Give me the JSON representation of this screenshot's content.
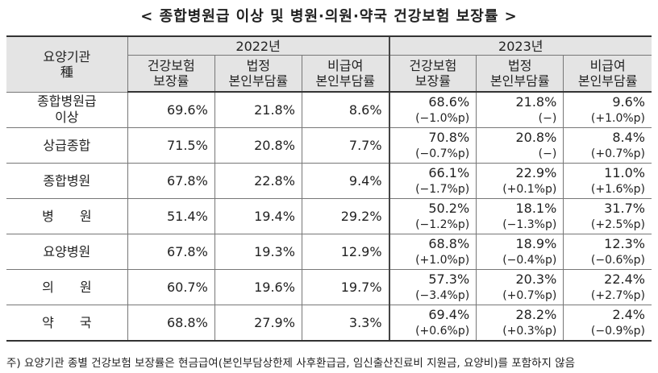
{
  "title": "< 종합병원급 이상 및 병원·의원·약국 건강보험 보장률 >",
  "header": {
    "row_label_line1": "요양기관",
    "row_label_line2": "種",
    "year_2022": "2022년",
    "year_2023": "2023년",
    "columns": [
      {
        "line1": "건강보험",
        "line2": "보장률"
      },
      {
        "line1": "법정",
        "line2": "본인부담률"
      },
      {
        "line1": "비급여",
        "line2": "본인부담률"
      },
      {
        "line1": "건강보험",
        "line2": "보장률"
      },
      {
        "line1": "법정",
        "line2": "본인부담률"
      },
      {
        "line1": "비급여",
        "line2": "본인부담률"
      }
    ]
  },
  "rows": [
    {
      "label": "종합병원급\n이상",
      "v2022": [
        "69.6%",
        "21.8%",
        "8.6%"
      ],
      "v2023": [
        "68.6%",
        "21.8%",
        "9.6%"
      ],
      "chg": [
        "(−1.0%p)",
        "(−)",
        "(+1.0%p)"
      ]
    },
    {
      "label": "상급종합",
      "v2022": [
        "71.5%",
        "20.8%",
        "7.7%"
      ],
      "v2023": [
        "70.8%",
        "20.8%",
        "8.4%"
      ],
      "chg": [
        "(−0.7%p)",
        "(−)",
        "(+0.7%p)"
      ]
    },
    {
      "label": "종합병원",
      "v2022": [
        "67.8%",
        "22.8%",
        "9.4%"
      ],
      "v2023": [
        "66.1%",
        "22.9%",
        "11.0%"
      ],
      "chg": [
        "(−1.7%p)",
        "(+0.1%p)",
        "(+1.6%p)"
      ]
    },
    {
      "label": "병　　원",
      "v2022": [
        "51.4%",
        "19.4%",
        "29.2%"
      ],
      "v2023": [
        "50.2%",
        "18.1%",
        "31.7%"
      ],
      "chg": [
        "(−1.2%p)",
        "(−1.3%p)",
        "(+2.5%p)"
      ]
    },
    {
      "label": "요양병원",
      "v2022": [
        "67.8%",
        "19.3%",
        "12.9%"
      ],
      "v2023": [
        "68.8%",
        "18.9%",
        "12.3%"
      ],
      "chg": [
        "(+1.0%p)",
        "(−0.4%p)",
        "(−0.6%p)"
      ]
    },
    {
      "label": "의　　원",
      "v2022": [
        "60.7%",
        "19.6%",
        "19.7%"
      ],
      "v2023": [
        "57.3%",
        "20.3%",
        "22.4%"
      ],
      "chg": [
        "(−3.4%p)",
        "(+0.7%p)",
        "(+2.7%p)"
      ]
    },
    {
      "label": "약　　국",
      "v2022": [
        "68.8%",
        "27.9%",
        "3.3%"
      ],
      "v2023": [
        "69.4%",
        "28.2%",
        "2.4%"
      ],
      "chg": [
        "(+0.6%p)",
        "(+0.3%p)",
        "(−0.9%p)"
      ]
    }
  ],
  "note": "주) 요양기관 종별 건강보험 보장률은 현금급여(본인부담상한제 사후환급금, 임신출산진료비 지원금, 요양비)를 포함하지 않음"
}
